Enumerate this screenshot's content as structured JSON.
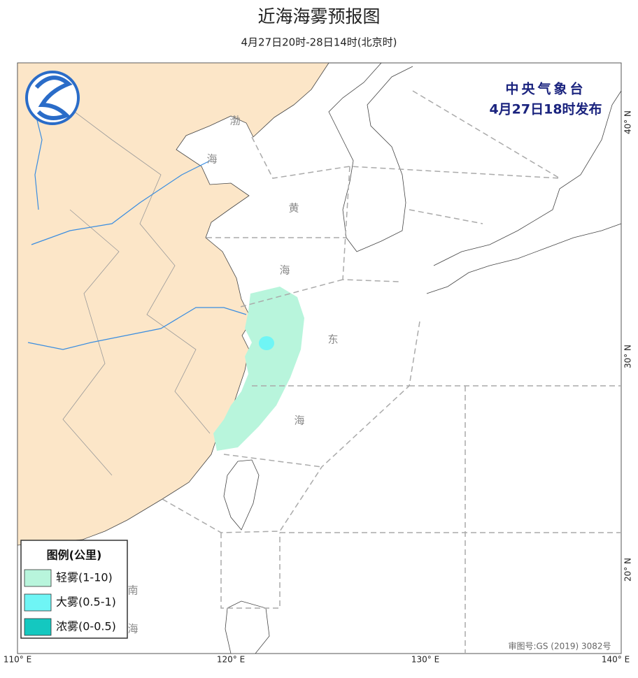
{
  "header": {
    "title": "近海海雾预报图",
    "subtitle": "4月27日20时-28日14时(北京时)"
  },
  "issuer": {
    "agency": "中央气象台",
    "time": "4月27日18时发布"
  },
  "sea_labels": [
    "渤",
    "海",
    "黄",
    "海",
    "东",
    "海",
    "南",
    "海"
  ],
  "graticule": {
    "longitudes": [
      "110° E",
      "120° E",
      "130° E",
      "140° E"
    ],
    "latitudes": [
      "40° N",
      "30° N",
      "20° N"
    ]
  },
  "legend": {
    "title": "图例(公里)",
    "items": [
      {
        "label": "轻雾(1-10)",
        "color": "#b8f5dc"
      },
      {
        "label": "大雾(0.5-1)",
        "color": "#6ff5f5"
      },
      {
        "label": "浓雾(0-0.5)",
        "color": "#14c8c0"
      }
    ]
  },
  "approval": "审图号:GS (2019) 3082号"
}
